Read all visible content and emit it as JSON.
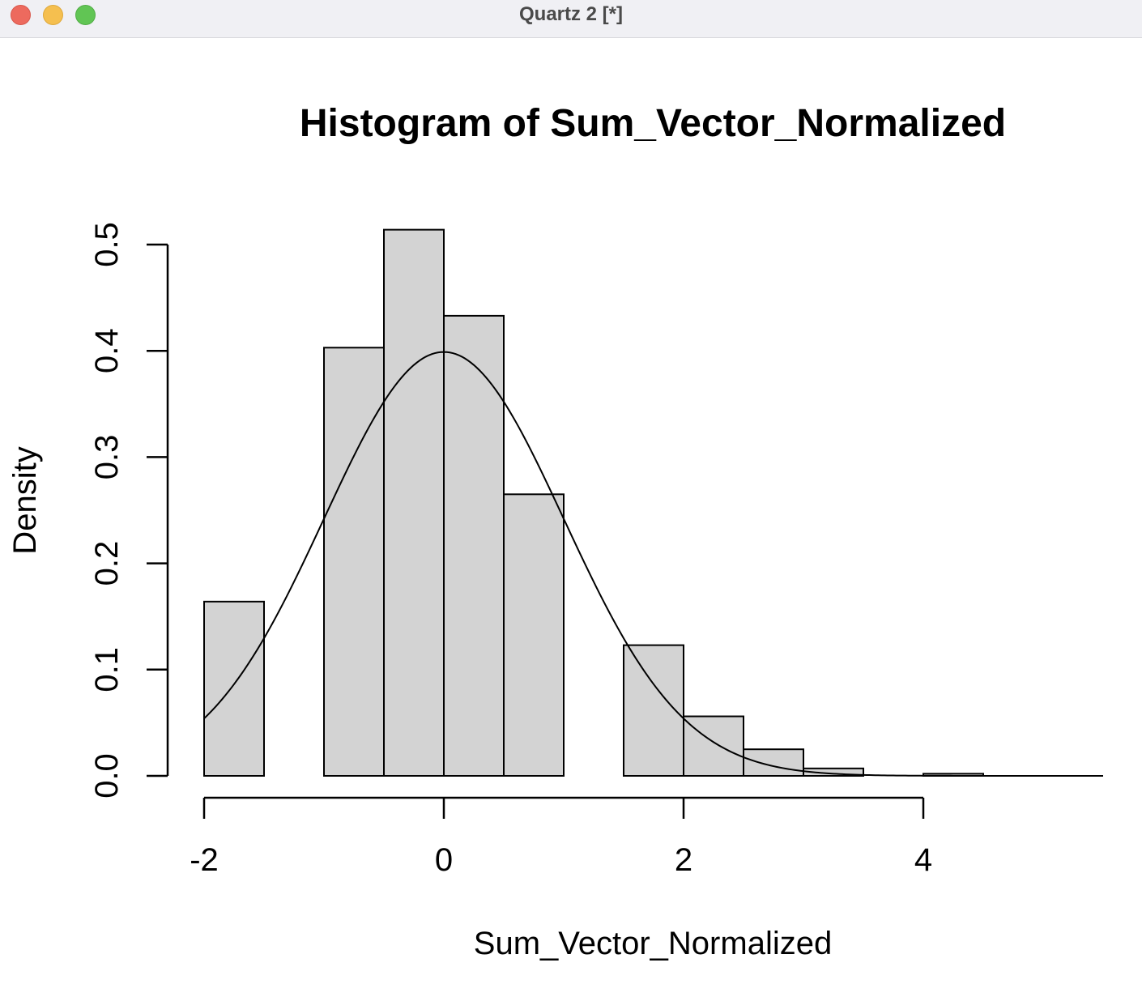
{
  "window": {
    "title": "Quartz 2 [*]",
    "buttons": [
      "close",
      "minimize",
      "zoom"
    ]
  },
  "chart_data": {
    "type": "histogram",
    "title": "Histogram of Sum_Vector_Normalized",
    "xlabel": "Sum_Vector_Normalized",
    "ylabel": "Density",
    "xlim": [
      -2,
      5.5
    ],
    "ylim": [
      0,
      0.5
    ],
    "x_ticks": [
      -2,
      0,
      2,
      4
    ],
    "x_tick_labels": [
      "-2",
      "0",
      "2",
      "4"
    ],
    "y_ticks": [
      0,
      0.1,
      0.2,
      0.3,
      0.4,
      0.5
    ],
    "y_tick_labels": [
      "0.0",
      "0.1",
      "0.2",
      "0.3",
      "0.4",
      "0.5"
    ],
    "bin_width": 0.5,
    "bins": [
      {
        "start": -2.0,
        "end": -1.5,
        "density": 0.164
      },
      {
        "start": -1.5,
        "end": -1.0,
        "density": 0.0
      },
      {
        "start": -1.0,
        "end": -0.5,
        "density": 0.403
      },
      {
        "start": -0.5,
        "end": 0.0,
        "density": 0.514
      },
      {
        "start": 0.0,
        "end": 0.5,
        "density": 0.433
      },
      {
        "start": 0.5,
        "end": 1.0,
        "density": 0.265
      },
      {
        "start": 1.0,
        "end": 1.5,
        "density": 0.0
      },
      {
        "start": 1.5,
        "end": 2.0,
        "density": 0.123
      },
      {
        "start": 2.0,
        "end": 2.5,
        "density": 0.056
      },
      {
        "start": 2.5,
        "end": 3.0,
        "density": 0.025
      },
      {
        "start": 3.0,
        "end": 3.5,
        "density": 0.007
      },
      {
        "start": 3.5,
        "end": 4.0,
        "density": 0.0
      },
      {
        "start": 4.0,
        "end": 4.5,
        "density": 0.002
      },
      {
        "start": 4.5,
        "end": 5.0,
        "density": 0.0
      },
      {
        "start": 5.0,
        "end": 5.5,
        "density": 0.0
      }
    ],
    "overlay_curve": {
      "type": "normal_density",
      "mean": 0,
      "sd": 1,
      "x_range": [
        -2,
        5.5
      ]
    },
    "bar_fill": "#d3d3d3",
    "bar_stroke": "#000000",
    "grid": false,
    "legend": "none"
  }
}
